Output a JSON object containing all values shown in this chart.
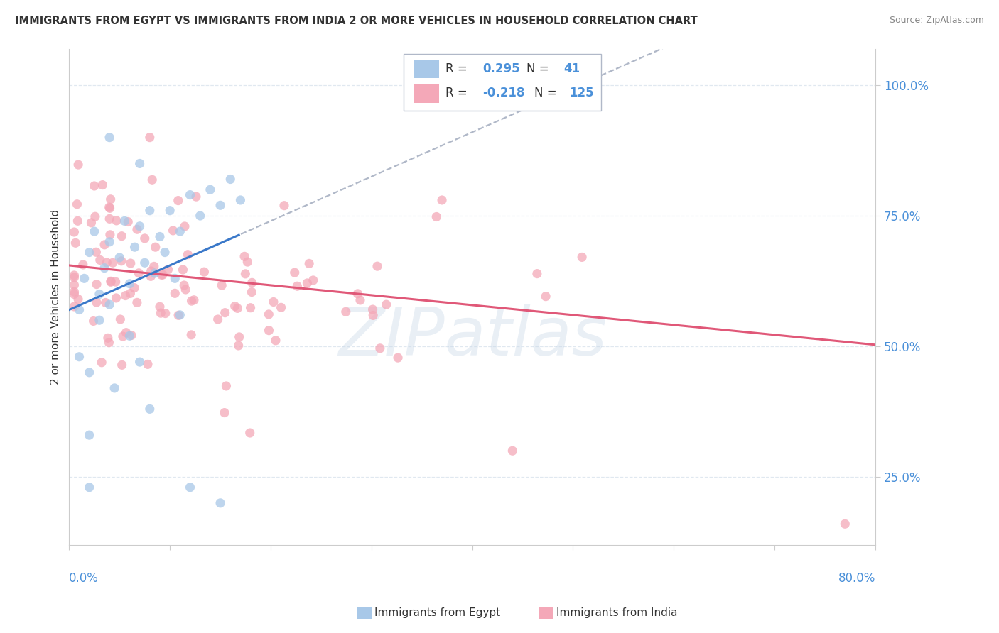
{
  "title": "IMMIGRANTS FROM EGYPT VS IMMIGRANTS FROM INDIA 2 OR MORE VEHICLES IN HOUSEHOLD CORRELATION CHART",
  "source": "Source: ZipAtlas.com",
  "ylabel": "2 or more Vehicles in Household",
  "xlim": [
    0.0,
    80.0
  ],
  "ylim": [
    12.0,
    107.0
  ],
  "egypt_R": 0.295,
  "egypt_N": 41,
  "india_R": -0.218,
  "india_N": 125,
  "egypt_color": "#a8c8e8",
  "india_color": "#f4a8b8",
  "egypt_line_color": "#3a78c9",
  "india_line_color": "#e05878",
  "dashed_line_color": "#b0b8c8",
  "text_color_blue": "#4a90d9",
  "text_color_dark": "#333333",
  "text_color_light": "#888888",
  "watermark_color": "#c8d8e8",
  "grid_color": "#e0e8f0",
  "background_color": "#ffffff",
  "yticks": [
    25,
    50,
    75,
    100
  ],
  "ytick_labels": [
    "25.0%",
    "50.0%",
    "75.0%",
    "100.0%"
  ],
  "xtick_left_label": "0.0%",
  "xtick_right_label": "80.0%",
  "legend_label_egypt": "Immigrants from Egypt",
  "legend_label_india": "Immigrants from India",
  "watermark_text": "ZIPatlas",
  "egypt_line_intercept": 57.0,
  "egypt_line_slope": 0.85,
  "india_line_intercept": 65.5,
  "india_line_slope": -0.19
}
